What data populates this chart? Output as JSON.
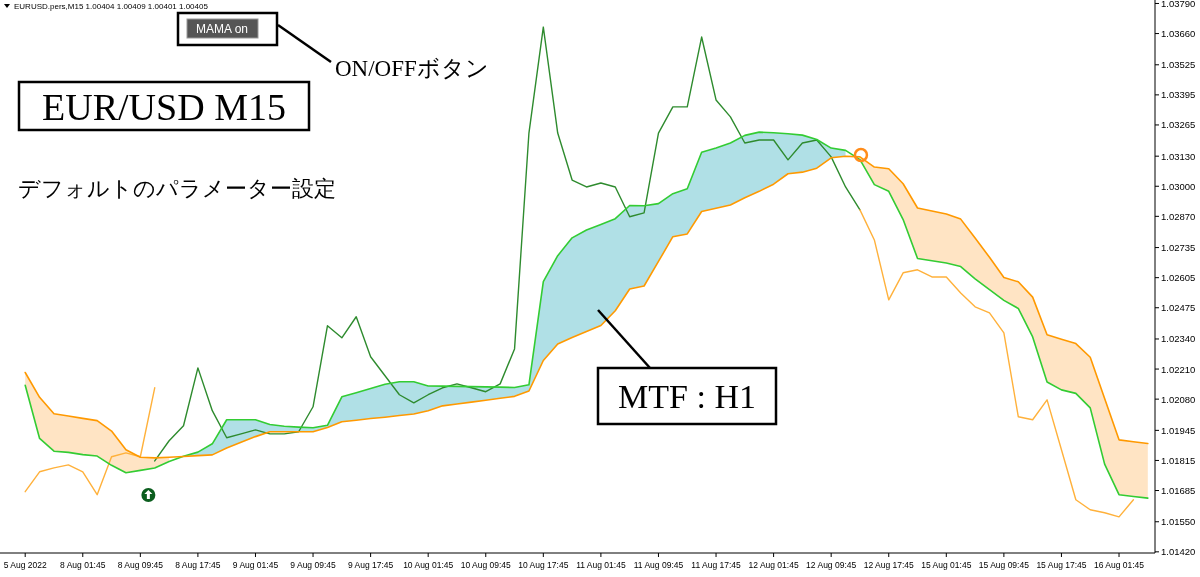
{
  "chart_data": {
    "type": "line",
    "title": "EUR/USD M15",
    "subtitle": "デフォルトのパラメーター設定",
    "annotations": [
      "EURUSD.pers,M15  1.00404 1.00409 1.00401 1.00405",
      "MAMA on",
      "ON/OFFボタン",
      "MTF : H1"
    ],
    "categories": [
      "5 Aug 2022",
      null,
      null,
      null,
      "8 Aug 01:45",
      null,
      null,
      null,
      "8 Aug 09:45",
      null,
      null,
      null,
      "8 Aug 17:45",
      null,
      null,
      null,
      "9 Aug 01:45",
      null,
      null,
      null,
      "9 Aug 09:45",
      null,
      null,
      null,
      "9 Aug 17:45",
      null,
      null,
      null,
      "10 Aug 01:45",
      null,
      null,
      null,
      "10 Aug 09:45",
      null,
      null,
      null,
      "10 Aug 17:45",
      null,
      null,
      null,
      "11 Aug 01:45",
      null,
      null,
      null,
      "11 Aug 09:45",
      null,
      null,
      null,
      "11 Aug 17:45",
      null,
      null,
      null,
      "12 Aug 01:45",
      null,
      null,
      null,
      "12 Aug 09:45",
      null,
      null,
      null,
      "12 Aug 17:45",
      null,
      null,
      null,
      "15 Aug 01:45",
      null,
      null,
      null,
      "15 Aug 09:45",
      null,
      null,
      null,
      "15 Aug 17:45",
      null,
      null,
      null,
      "16 Aug 01:45",
      null,
      null
    ],
    "ylim": [
      1.01415,
      1.03805
    ],
    "yticks": [
      {
        "value": 1.0379,
        "label": "1.03790"
      },
      {
        "value": 1.0366,
        "label": "1.03660"
      },
      1.03525,
      1.03395,
      1.03265,
      {
        "value": 1.0313,
        "label": "1.03130"
      },
      {
        "value": 1.03,
        "label": "1.03000"
      },
      {
        "value": 1.0287,
        "label": "1.02870"
      },
      1.02735,
      1.02605,
      1.02475,
      {
        "value": 1.0234,
        "label": "1.02340"
      },
      {
        "value": 1.0221,
        "label": "1.02210"
      },
      {
        "value": 1.0208,
        "label": "1.02080"
      },
      1.01945,
      1.01815,
      1.01685,
      {
        "value": 1.0155,
        "label": "1.01550"
      },
      {
        "value": 1.0142,
        "label": "1.01420"
      }
    ],
    "colors": [
      "#b0e0e6",
      "#ffe4c4"
    ],
    "series": [
      {
        "color": "#ffb13b",
        "values": [
          1.0168,
          1.01766,
          1.01783,
          1.01796,
          1.01766,
          1.01667,
          1.01831,
          1.01848,
          1.01831,
          1.02129,
          null,
          null,
          null,
          null,
          null,
          null,
          null,
          null,
          null,
          null,
          null,
          null,
          null,
          null,
          null,
          null,
          null,
          null,
          null,
          null,
          null,
          null,
          null,
          null,
          null,
          null,
          null,
          null,
          null,
          null,
          null,
          null,
          null,
          null,
          null,
          null,
          null,
          null,
          null,
          null,
          null,
          null,
          null,
          null,
          null,
          null,
          null,
          null,
          null,
          null,
          null,
          null,
          null,
          null,
          null,
          null,
          null,
          null,
          null,
          null,
          null,
          null,
          null,
          null,
          null,
          null,
          null,
          null,
          null
        ]
      },
      {
        "color": "#2e8b2e",
        "values": [
          null,
          null,
          null,
          null,
          null,
          null,
          null,
          null,
          null,
          1.01813,
          1.019,
          1.01965,
          1.02215,
          1.0203,
          1.01913,
          1.0193,
          1.01947,
          1.0193,
          1.0193,
          1.01939,
          1.02047,
          1.02397,
          1.02345,
          1.02436,
          1.02263,
          1.02181,
          1.02099,
          1.02064,
          1.02099,
          1.02129,
          1.02146,
          1.02129,
          1.02112,
          1.02146,
          1.02297,
          1.0323,
          1.03688,
          1.0323,
          1.03027,
          1.02997,
          1.03014,
          1.02997,
          1.02868,
          1.02885,
          1.0323,
          1.03343,
          1.03343,
          1.03645,
          1.03373,
          1.033,
          1.03187,
          1.032,
          1.032,
          1.03114,
          1.03187,
          1.032,
          1.03127,
          1.02997,
          1.02898,
          null,
          null,
          null,
          null,
          null,
          null,
          null,
          null,
          null,
          null,
          null,
          null,
          null,
          null,
          null,
          null,
          null,
          null,
          null,
          null
        ]
      },
      {
        "color": "#ffb13b",
        "values": [
          null,
          null,
          null,
          null,
          null,
          null,
          null,
          null,
          null,
          null,
          null,
          null,
          null,
          null,
          null,
          null,
          null,
          null,
          null,
          null,
          null,
          null,
          null,
          null,
          null,
          null,
          null,
          null,
          null,
          null,
          null,
          null,
          null,
          null,
          null,
          null,
          null,
          null,
          null,
          null,
          null,
          null,
          null,
          null,
          null,
          null,
          null,
          null,
          null,
          null,
          null,
          null,
          null,
          null,
          null,
          null,
          null,
          null,
          1.02898,
          1.02768,
          1.02509,
          1.02626,
          1.02639,
          1.02608,
          1.02608,
          1.02539,
          1.02479,
          1.02453,
          1.02366,
          1.02004,
          1.01991,
          1.02077,
          1.01861,
          1.01645,
          1.01602,
          1.01589,
          1.01571,
          1.01645,
          null
        ]
      },
      {
        "color": "#33cc33",
        "upper": [
          null,
          null,
          null,
          null,
          null,
          null,
          null,
          null,
          null,
          null,
          null,
          1.01833,
          1.01851,
          1.01887,
          1.01991,
          1.01991,
          1.01991,
          1.0197,
          1.01963,
          1.01959,
          1.01956,
          1.01967,
          1.0209,
          1.02108,
          1.02126,
          1.02144,
          1.02155,
          1.02155,
          1.02137,
          1.02136,
          1.02135,
          1.02134,
          1.02133,
          1.02132,
          1.0213,
          1.02142,
          1.02588,
          1.027,
          1.02777,
          1.02811,
          1.02835,
          1.0286,
          1.02917,
          1.02916,
          1.02925,
          1.02968,
          1.02989,
          1.03147,
          1.03165,
          1.03187,
          1.0322,
          1.03234,
          1.03231,
          1.03227,
          1.03221,
          1.03202,
          1.03165,
          1.03155,
          null,
          null,
          null,
          null,
          null,
          null,
          null,
          null,
          null,
          null,
          null,
          null,
          null,
          null,
          null,
          null,
          null,
          null,
          null,
          null,
          null
        ],
        "lower": [
          null,
          null,
          null,
          null,
          null,
          null,
          null,
          null,
          null,
          null,
          null,
          1.01832,
          1.01836,
          1.01839,
          1.01869,
          1.01894,
          1.01918,
          1.01939,
          1.01939,
          1.01939,
          1.01939,
          1.01957,
          1.01982,
          1.01989,
          1.01996,
          1.02002,
          1.02009,
          1.02016,
          1.0203,
          1.02051,
          1.02059,
          1.02067,
          1.02075,
          1.02084,
          1.02092,
          1.02115,
          1.02247,
          1.02318,
          1.02346,
          1.02372,
          1.02398,
          1.02462,
          1.02556,
          1.02569,
          1.02675,
          1.02782,
          1.02794,
          1.02891,
          1.02905,
          1.02919,
          1.0295,
          1.02978,
          1.03009,
          1.03054,
          1.03061,
          1.03078,
          1.03123,
          1.0313,
          null,
          null,
          null,
          null,
          null,
          null,
          null,
          null,
          null,
          null,
          null,
          null,
          null,
          null,
          null,
          null,
          null,
          null,
          null,
          null,
          null
        ],
        "values": [
          1.0214,
          1.0191,
          1.01855,
          1.0185,
          1.0184,
          1.01834,
          1.01794,
          1.01762,
          1.01772,
          1.01782,
          1.0181,
          1.01833,
          1.01851,
          1.01887,
          1.01991,
          1.01991,
          1.01991,
          1.0197,
          1.01963,
          1.01959,
          1.01956,
          1.01967,
          1.0209,
          1.02108,
          1.02126,
          1.02144,
          1.02155,
          1.02155,
          1.02137,
          1.02136,
          1.02135,
          1.02134,
          1.02133,
          1.02132,
          1.0213,
          1.02142,
          1.02588,
          1.027,
          1.02777,
          1.02811,
          1.02835,
          1.0286,
          1.02917,
          1.02916,
          1.02925,
          1.02968,
          1.02989,
          1.03147,
          1.03165,
          1.03187,
          1.0322,
          1.03234,
          1.03231,
          1.03227,
          1.03221,
          1.03202,
          1.03165,
          1.03155,
          1.03115,
          1.03007,
          1.02978,
          1.02856,
          1.02688,
          1.02678,
          1.02668,
          1.02653,
          1.026,
          1.02553,
          1.02507,
          1.02472,
          1.02349,
          1.02154,
          1.0212,
          1.02105,
          1.02042,
          1.01799,
          1.01667,
          1.01659,
          1.01652
        ]
      },
      {
        "color": "#ff9900",
        "upper": [
          1.02195,
          1.02088,
          1.02017,
          1.02007,
          1.01997,
          1.01987,
          1.01942,
          1.01861,
          1.01829,
          1.01826,
          1.01829,
          null,
          null,
          null,
          null,
          null,
          null,
          null,
          null,
          null,
          null,
          null,
          null,
          null,
          null,
          null,
          null,
          null,
          null,
          null,
          null,
          null,
          null,
          null,
          null,
          null,
          null,
          null,
          null,
          null,
          null,
          null,
          null,
          null,
          null,
          null,
          null,
          null,
          null,
          null,
          null,
          null,
          null,
          null,
          null,
          null,
          null,
          null,
          1.03127,
          1.03083,
          1.03076,
          1.03011,
          1.02906,
          1.02893,
          1.0288,
          1.02858,
          1.02776,
          1.02693,
          1.02606,
          1.02587,
          1.02521,
          1.02358,
          1.02339,
          1.0232,
          1.02261,
          1.02083,
          1.01904,
          1.01896,
          1.01888
        ],
        "lower": [
          1.0214,
          1.0191,
          1.01855,
          1.0185,
          1.0184,
          1.01834,
          1.01794,
          1.01762,
          1.01772,
          1.01782,
          1.0181,
          null,
          null,
          null,
          null,
          null,
          null,
          null,
          null,
          null,
          null,
          null,
          null,
          null,
          null,
          null,
          null,
          null,
          null,
          null,
          null,
          null,
          null,
          null,
          null,
          null,
          null,
          null,
          null,
          null,
          null,
          null,
          null,
          null,
          null,
          null,
          null,
          null,
          null,
          null,
          null,
          null,
          null,
          null,
          null,
          null,
          null,
          null,
          1.03115,
          1.03007,
          1.02978,
          1.02856,
          1.02688,
          1.02678,
          1.02668,
          1.02653,
          1.026,
          1.02553,
          1.02507,
          1.02472,
          1.02349,
          1.02154,
          1.0212,
          1.02105,
          1.02042,
          1.01799,
          1.01667,
          1.01659,
          1.01652
        ],
        "values": [
          1.02195,
          1.02088,
          1.02017,
          1.02007,
          1.01997,
          1.01987,
          1.01942,
          1.01861,
          1.01829,
          1.01826,
          1.01829,
          1.01832,
          1.01836,
          1.01839,
          1.01869,
          1.01894,
          1.01918,
          1.01939,
          1.01939,
          1.01939,
          1.01939,
          1.01957,
          1.01982,
          1.01989,
          1.01996,
          1.02002,
          1.02009,
          1.02016,
          1.0203,
          1.02051,
          1.02059,
          1.02067,
          1.02075,
          1.02084,
          1.02092,
          1.02115,
          1.02247,
          1.02318,
          1.02346,
          1.02372,
          1.02398,
          1.02462,
          1.02556,
          1.02569,
          1.02675,
          1.02782,
          1.02794,
          1.02891,
          1.02905,
          1.02919,
          1.0295,
          1.02978,
          1.03009,
          1.03054,
          1.03061,
          1.03078,
          1.03123,
          1.0313,
          1.03127,
          1.03083,
          1.03076,
          1.03011,
          1.02906,
          1.02893,
          1.0288,
          1.02858,
          1.02776,
          1.02693,
          1.02606,
          1.02587,
          1.02521,
          1.02358,
          1.02339,
          1.0232,
          1.02261,
          1.02083,
          1.01904,
          1.01896,
          1.01888
        ]
      }
    ]
  }
}
